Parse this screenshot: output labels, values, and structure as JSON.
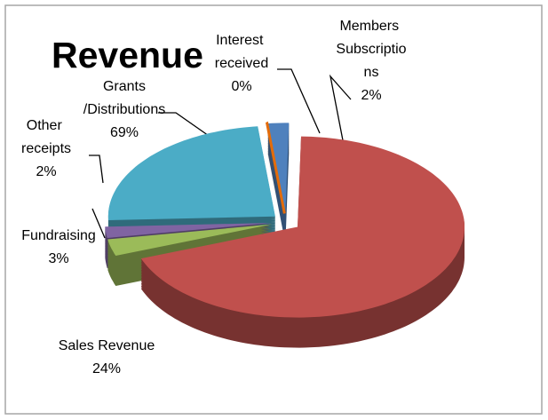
{
  "chart_data": {
    "type": "pie3d",
    "title": "Revenue",
    "categories": [
      "Interest received",
      "Members Subscriptions",
      "Grants/Distributions",
      "Fundraising",
      "Other receipts",
      "Sales Revenue"
    ],
    "values": [
      0,
      2,
      69,
      3,
      2,
      24
    ],
    "value_labels": [
      "0%",
      "2%",
      "69%",
      "3%",
      "2%",
      "24%"
    ],
    "colors": [
      "#e46c0a",
      "#4f81bd",
      "#c0504d",
      "#9bbb59",
      "#8064a2",
      "#4bacc6"
    ]
  }
}
